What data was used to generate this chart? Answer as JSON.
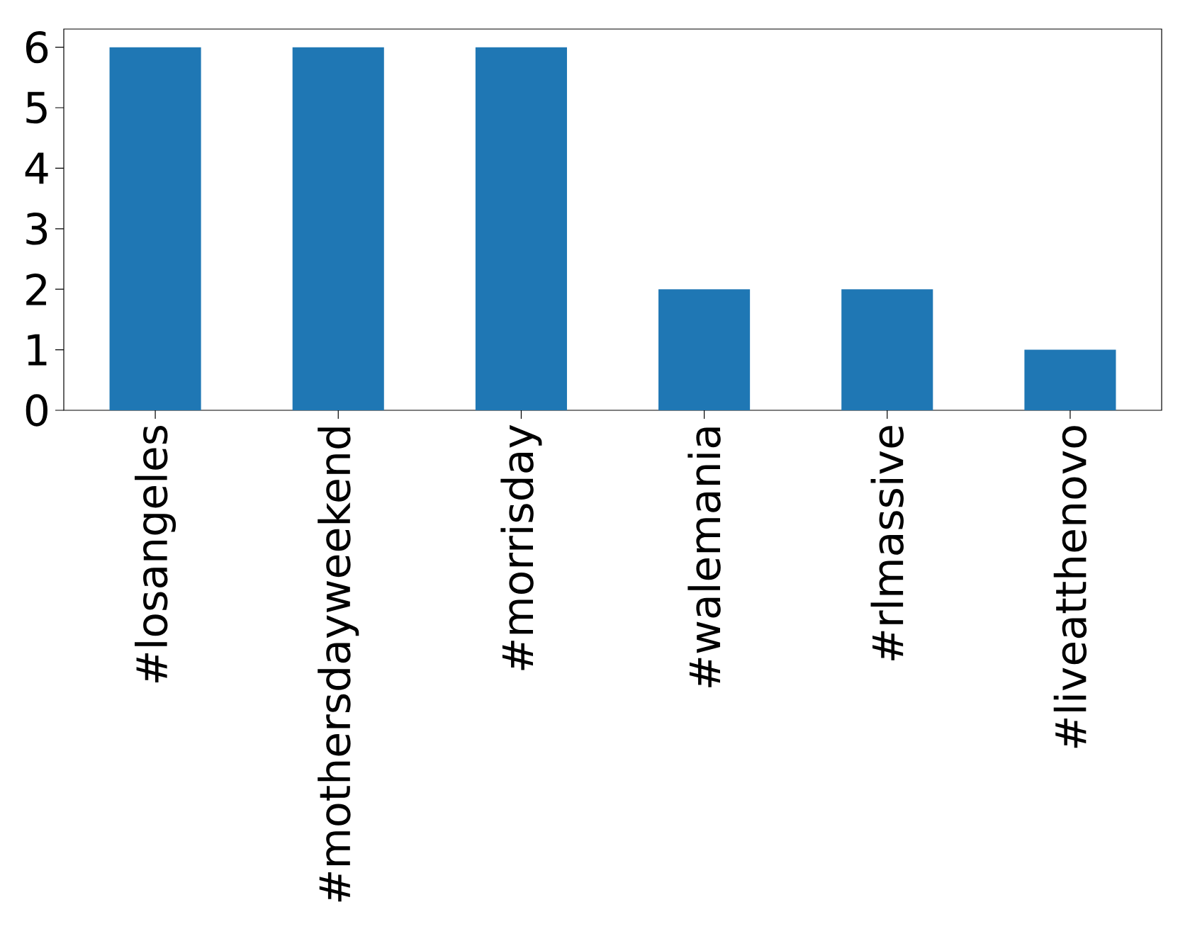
{
  "chart_data": {
    "type": "bar",
    "categories": [
      "#losangeles",
      "#mothersdayweekend",
      "#morrisday",
      "#walemania",
      "#rlmassive",
      "#liveatthenovo"
    ],
    "values": [
      6,
      6,
      6,
      2,
      2,
      1
    ],
    "color": "#1f77b4",
    "ylim": [
      0,
      6.3
    ],
    "yticks": [
      0,
      1,
      2,
      3,
      4,
      5,
      6
    ],
    "grid": false
  }
}
